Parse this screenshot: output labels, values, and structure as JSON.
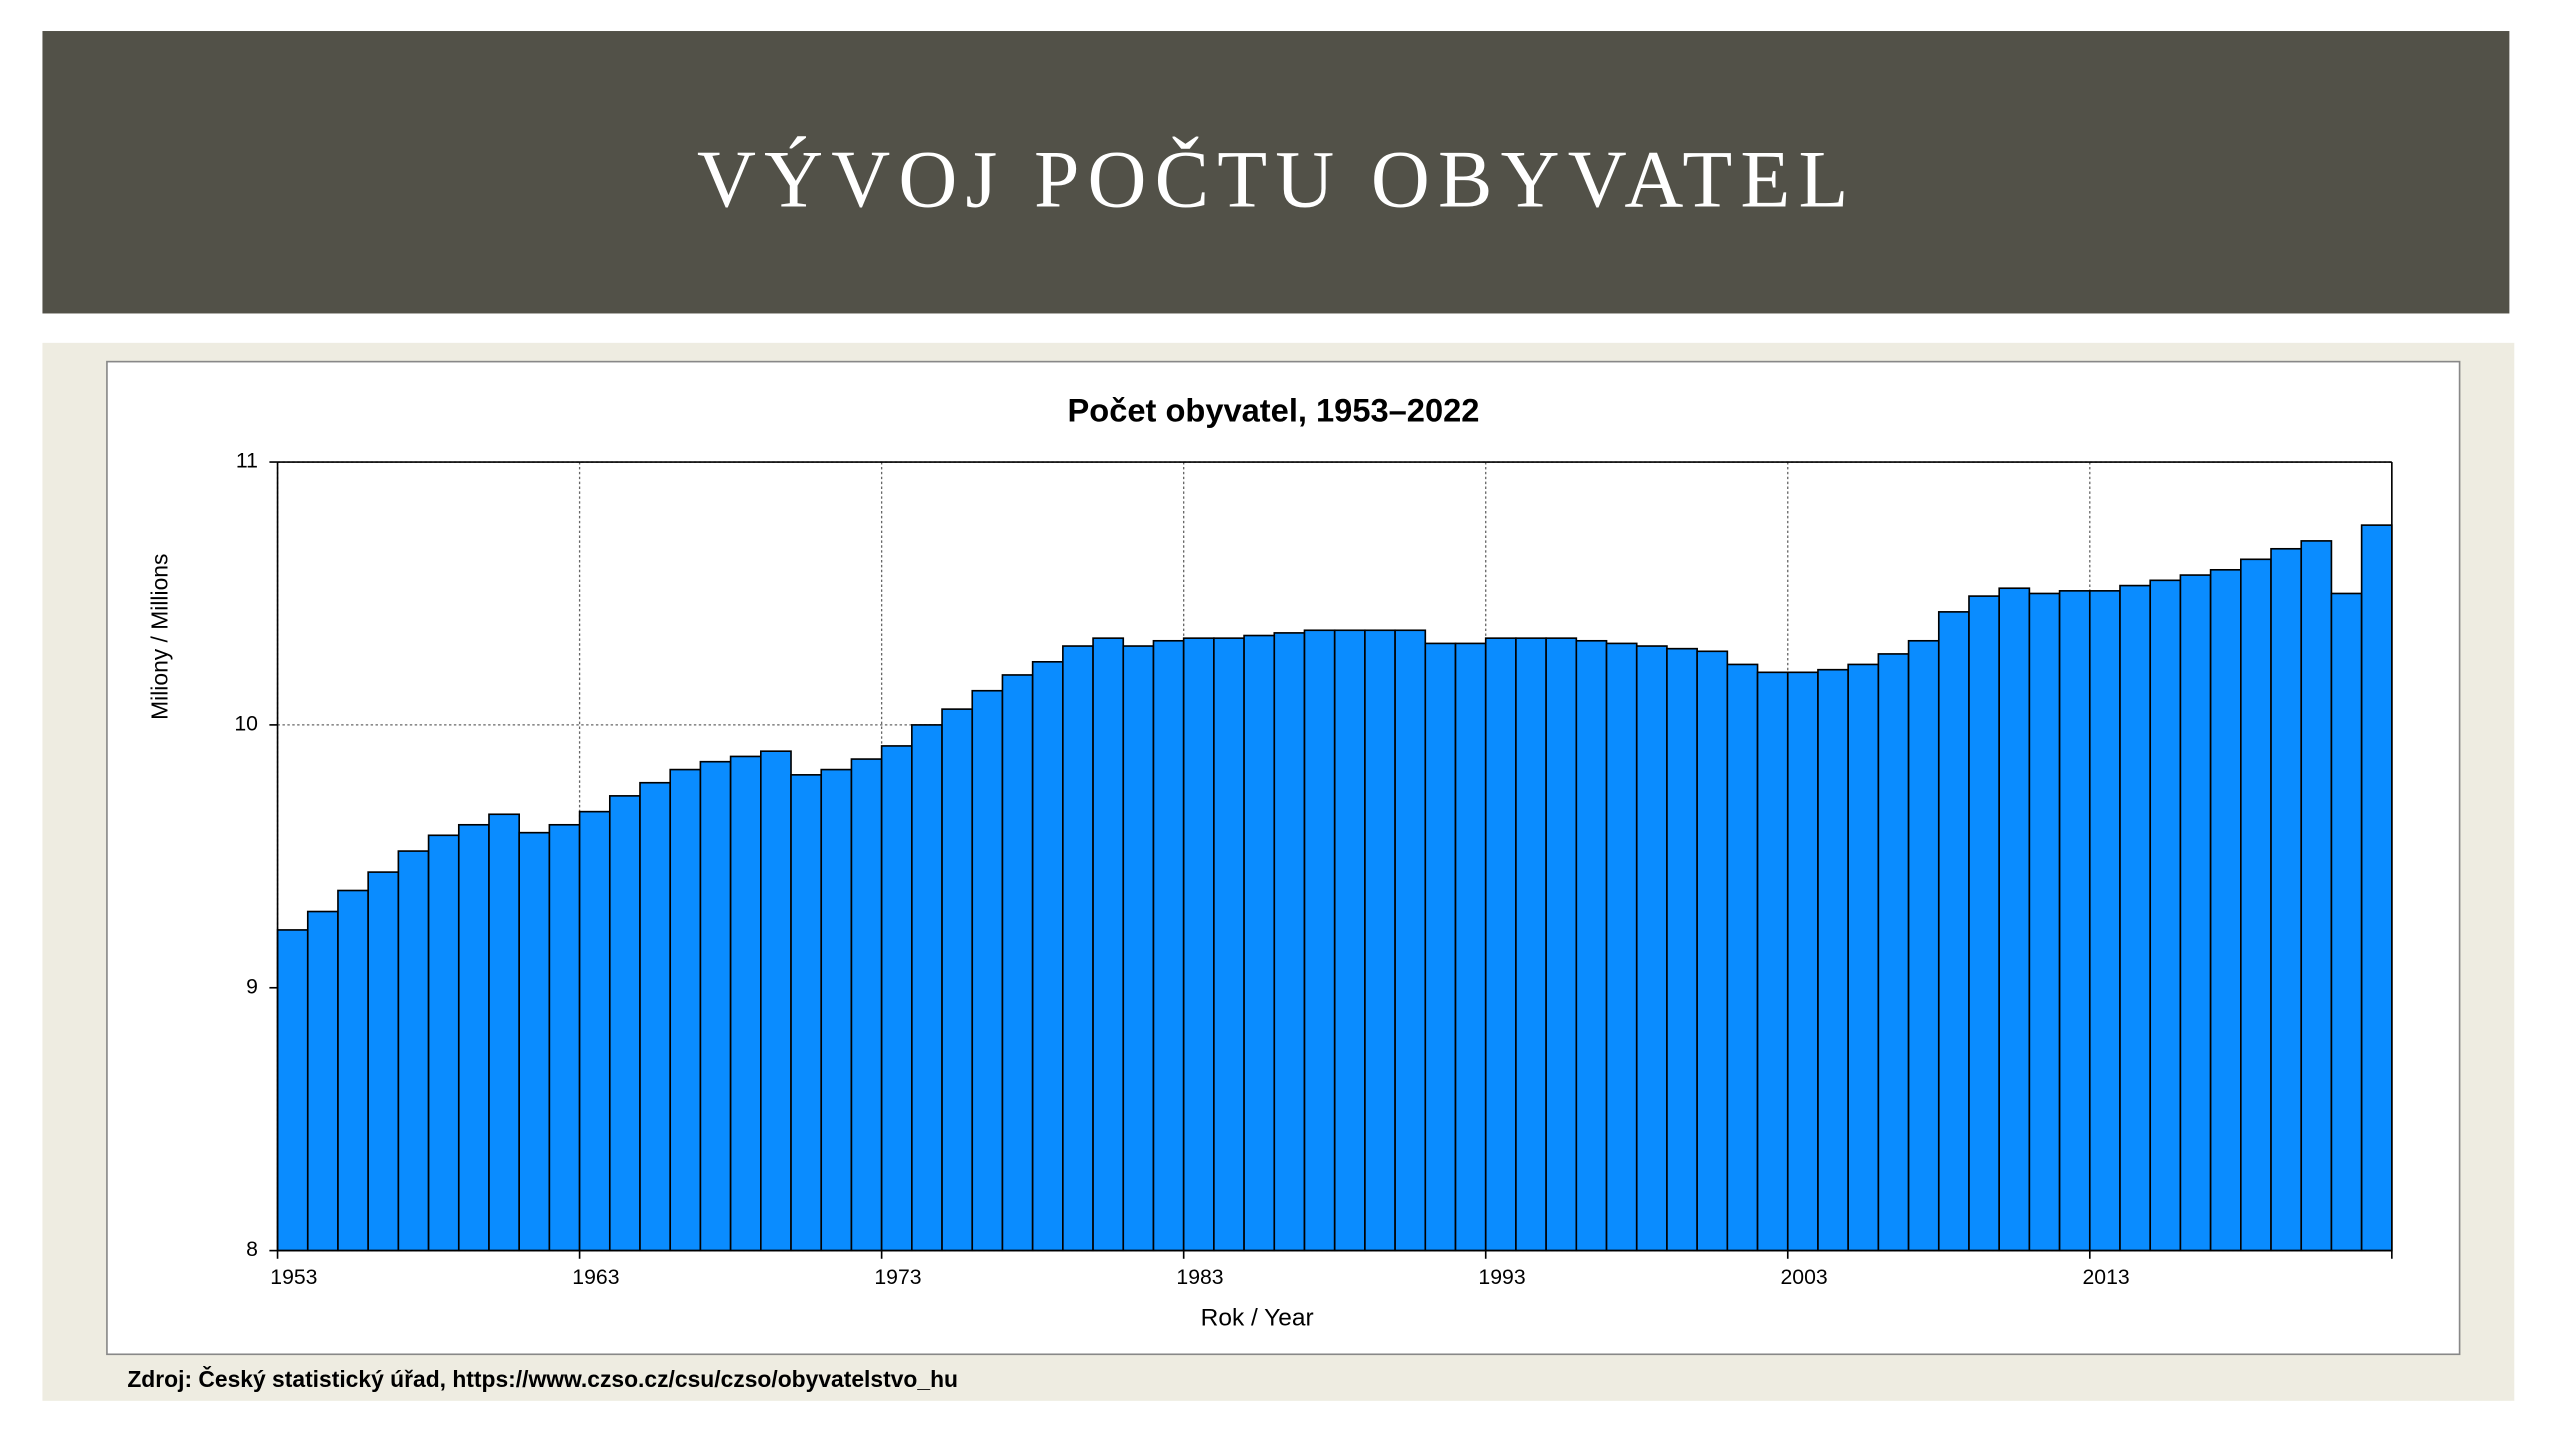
{
  "header": {
    "title": "VÝVOJ POČTU OBYVATEL"
  },
  "chart_data": {
    "type": "bar",
    "title": "Počet obyvatel, 1953–2022",
    "xlabel": "Rok / Year",
    "ylabel": "Miliony / Millions",
    "x": [
      1953,
      1954,
      1955,
      1956,
      1957,
      1958,
      1959,
      1960,
      1961,
      1962,
      1963,
      1964,
      1965,
      1966,
      1967,
      1968,
      1969,
      1970,
      1971,
      1972,
      1973,
      1974,
      1975,
      1976,
      1977,
      1978,
      1979,
      1980,
      1981,
      1982,
      1983,
      1984,
      1985,
      1986,
      1987,
      1988,
      1989,
      1990,
      1991,
      1992,
      1993,
      1994,
      1995,
      1996,
      1997,
      1998,
      1999,
      2000,
      2001,
      2002,
      2003,
      2004,
      2005,
      2006,
      2007,
      2008,
      2009,
      2010,
      2011,
      2012,
      2013,
      2014,
      2015,
      2016,
      2017,
      2018,
      2019,
      2020,
      2021,
      2022
    ],
    "values": [
      9.22,
      9.29,
      9.37,
      9.44,
      9.52,
      9.58,
      9.62,
      9.66,
      9.59,
      9.62,
      9.67,
      9.73,
      9.78,
      9.83,
      9.86,
      9.88,
      9.9,
      9.81,
      9.83,
      9.87,
      9.92,
      10.0,
      10.06,
      10.13,
      10.19,
      10.24,
      10.3,
      10.33,
      10.3,
      10.32,
      10.33,
      10.33,
      10.34,
      10.35,
      10.36,
      10.36,
      10.36,
      10.36,
      10.31,
      10.31,
      10.33,
      10.33,
      10.33,
      10.32,
      10.31,
      10.3,
      10.29,
      10.28,
      10.23,
      10.2,
      10.2,
      10.21,
      10.23,
      10.27,
      10.32,
      10.43,
      10.49,
      10.52,
      10.5,
      10.51,
      10.51,
      10.53,
      10.55,
      10.57,
      10.59,
      10.63,
      10.67,
      10.7,
      10.5,
      10.76
    ],
    "color": "#0a8cff",
    "xlim": [
      1953,
      2023
    ],
    "xticks": [
      1953,
      1963,
      1973,
      1983,
      1993,
      2003,
      2013
    ],
    "ylim": [
      8,
      11
    ],
    "yticks": [
      8,
      9,
      10,
      11
    ],
    "grid": true
  },
  "source": "Zdroj: Český statistický úřad, https://www.czso.cz/csu/czso/obyvatelstvo_hu"
}
